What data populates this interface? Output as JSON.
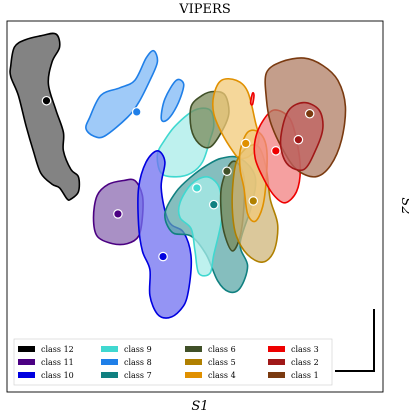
{
  "chart_data": {
    "type": "scatter",
    "title": "VIPERS",
    "xlabel": "S1",
    "ylabel": "S2",
    "xlim": [
      0,
      100
    ],
    "ylim": [
      0,
      100
    ],
    "grid": false,
    "legend_placement": "bottom-left",
    "scale_bar": true,
    "series": [
      {
        "name": "class 12",
        "color": "#000000",
        "fill": "#5a5a5a",
        "centroid": [
          10.5,
          78.5
        ],
        "outline": [
          [
            1,
            88
          ],
          [
            2,
            93
          ],
          [
            5,
            95
          ],
          [
            9,
            96
          ],
          [
            13,
            96.5
          ],
          [
            14,
            93
          ],
          [
            12,
            89
          ],
          [
            11,
            83
          ],
          [
            13,
            76
          ],
          [
            15,
            70
          ],
          [
            15,
            65
          ],
          [
            17,
            60
          ],
          [
            19,
            58
          ],
          [
            19,
            54
          ],
          [
            17,
            52
          ],
          [
            16,
            52
          ],
          [
            14,
            55
          ],
          [
            12,
            56
          ],
          [
            9,
            59
          ],
          [
            7,
            65
          ],
          [
            5,
            72
          ],
          [
            3,
            80
          ],
          [
            1,
            85
          ]
        ]
      },
      {
        "name": "class 8",
        "color": "#1f7fe8",
        "fill": "#7fb8f5",
        "centroid": [
          34.5,
          75.5
        ],
        "outline": [
          [
            22,
            74
          ],
          [
            25,
            80
          ],
          [
            30,
            82
          ],
          [
            34,
            84
          ],
          [
            37,
            90
          ],
          [
            39,
            92
          ],
          [
            40,
            89
          ],
          [
            38,
            84
          ],
          [
            35,
            78
          ],
          [
            32,
            74
          ],
          [
            26,
            69
          ],
          [
            23,
            69
          ],
          [
            21,
            71
          ]
        ]
      },
      {
        "name": "class 8",
        "color": "#1f7fe8",
        "fill": "#7fb8f5",
        "centroid": null,
        "outline": [
          [
            41,
            74
          ],
          [
            42,
            79
          ],
          [
            45,
            84
          ],
          [
            47,
            83
          ],
          [
            46,
            79
          ],
          [
            44,
            75
          ],
          [
            42,
            73
          ]
        ]
      },
      {
        "name": "class 9",
        "color": "#40d8d0",
        "fill": "#a8ece8",
        "centroid": null,
        "outline": [
          [
            40,
            64
          ],
          [
            42,
            68
          ],
          [
            45,
            72
          ],
          [
            50,
            76
          ],
          [
            54,
            76
          ],
          [
            55,
            72
          ],
          [
            54,
            68
          ],
          [
            52,
            62
          ],
          [
            49,
            59
          ],
          [
            45,
            58
          ],
          [
            41,
            59
          ]
        ]
      },
      {
        "name": "class 11",
        "color": "#4b0082",
        "fill": "#8c6bb2",
        "centroid": [
          29.5,
          48
        ],
        "outline": [
          [
            23,
            47
          ],
          [
            24,
            53
          ],
          [
            27,
            56
          ],
          [
            31,
            57
          ],
          [
            34,
            57
          ],
          [
            36,
            53
          ],
          [
            36,
            47
          ],
          [
            35,
            42
          ],
          [
            32,
            40
          ],
          [
            28,
            40
          ],
          [
            24,
            42
          ]
        ]
      },
      {
        "name": "class 10",
        "color": "#0000e0",
        "fill": "#7070f0",
        "centroid": [
          41.5,
          36.5
        ],
        "outline": [
          [
            35,
            55
          ],
          [
            37,
            62
          ],
          [
            40,
            65
          ],
          [
            42,
            62
          ],
          [
            41,
            55
          ],
          [
            43,
            46
          ],
          [
            47,
            43
          ],
          [
            49,
            36
          ],
          [
            48,
            26
          ],
          [
            46,
            22
          ],
          [
            43,
            20
          ],
          [
            40,
            21
          ],
          [
            38,
            26
          ],
          [
            38,
            33
          ],
          [
            36,
            38
          ],
          [
            35,
            45
          ]
        ]
      },
      {
        "name": "class 7",
        "color": "#108080",
        "fill": "#5ca8a8",
        "centroid": [
          55,
          50.5
        ],
        "outline": [
          [
            42,
            48
          ],
          [
            45,
            54
          ],
          [
            49,
            58
          ],
          [
            53,
            61
          ],
          [
            57,
            63
          ],
          [
            62,
            63
          ],
          [
            66,
            58
          ],
          [
            65,
            50
          ],
          [
            62,
            40
          ],
          [
            64,
            34
          ],
          [
            62,
            28
          ],
          [
            59,
            27
          ],
          [
            56,
            30
          ],
          [
            53,
            37
          ],
          [
            49,
            42
          ],
          [
            44,
            43
          ]
        ]
      },
      {
        "name": "class 9",
        "color": "#40d8d0",
        "fill": "#a8ece8",
        "centroid": [
          50.5,
          55
        ],
        "outline": [
          [
            46,
            51
          ],
          [
            49,
            56
          ],
          [
            53,
            58
          ],
          [
            56,
            56
          ],
          [
            57,
            52
          ],
          [
            57,
            46
          ],
          [
            55,
            37
          ],
          [
            54,
            32
          ],
          [
            51,
            32
          ],
          [
            50,
            38
          ],
          [
            49,
            44
          ],
          [
            46,
            47
          ]
        ]
      },
      {
        "name": "class 6",
        "color": "#405028",
        "fill": "#7a8a5a",
        "centroid": [
          58.5,
          59.5
        ],
        "outline": [
          [
            49,
            77
          ],
          [
            52,
            80
          ],
          [
            55,
            81
          ],
          [
            58,
            80
          ],
          [
            59,
            75
          ],
          [
            57,
            70
          ],
          [
            54,
            66
          ],
          [
            51,
            67
          ],
          [
            49,
            71
          ]
        ]
      },
      {
        "name": "class 6",
        "color": "#405028",
        "fill": "#7a8a5a",
        "centroid": null,
        "outline": [
          [
            57,
            55
          ],
          [
            59,
            61
          ],
          [
            61,
            62
          ],
          [
            63,
            58
          ],
          [
            63,
            50
          ],
          [
            62,
            42
          ],
          [
            60,
            38
          ],
          [
            58,
            42
          ],
          [
            57,
            48
          ]
        ]
      },
      {
        "name": "class 4",
        "color": "#e09000",
        "fill": "#f2c978",
        "centroid": [
          63.5,
          67
        ],
        "outline": [
          [
            55,
            80
          ],
          [
            57,
            84
          ],
          [
            61,
            84
          ],
          [
            64,
            81
          ],
          [
            66,
            73
          ],
          [
            67,
            68
          ],
          [
            65,
            64
          ],
          [
            62,
            63
          ],
          [
            60,
            65
          ],
          [
            57,
            70
          ],
          [
            55,
            75
          ]
        ]
      },
      {
        "name": "class 5",
        "color": "#b08000",
        "fill": "#cfb67a",
        "centroid": [
          65.5,
          51.5
        ],
        "outline": [
          [
            60,
            55
          ],
          [
            61,
            62
          ],
          [
            64,
            66
          ],
          [
            67,
            66
          ],
          [
            69,
            60
          ],
          [
            70,
            52
          ],
          [
            72,
            45
          ],
          [
            71,
            38
          ],
          [
            68,
            35
          ],
          [
            64,
            37
          ],
          [
            61,
            42
          ],
          [
            60,
            48
          ]
        ]
      },
      {
        "name": "class 4",
        "color": "#e09000",
        "fill": "#f2c978",
        "centroid": null,
        "outline": [
          [
            62,
            65
          ],
          [
            64,
            70
          ],
          [
            67,
            70
          ],
          [
            69,
            66
          ],
          [
            69,
            58
          ],
          [
            68,
            50
          ],
          [
            66,
            46
          ],
          [
            64,
            48
          ],
          [
            63,
            55
          ],
          [
            62,
            60
          ]
        ]
      },
      {
        "name": "class 3",
        "color": "#ee0000",
        "fill": "#f28080",
        "centroid": [
          71.5,
          65
        ],
        "outline": [
          [
            66,
            68
          ],
          [
            68,
            73
          ],
          [
            71,
            76
          ],
          [
            75,
            74
          ],
          [
            77,
            68
          ],
          [
            78,
            60
          ],
          [
            77,
            54
          ],
          [
            74,
            51
          ],
          [
            71,
            53
          ],
          [
            68,
            58
          ],
          [
            66,
            63
          ]
        ]
      },
      {
        "name": "class 3",
        "color": "#ee0000",
        "fill": "#f28080",
        "centroid": null,
        "outline": [
          [
            64.8,
            78
          ],
          [
            65.3,
            80.5
          ],
          [
            65.7,
            80
          ],
          [
            65.3,
            77.5
          ]
        ]
      },
      {
        "name": "class 1",
        "color": "#7a3a10",
        "fill": "#b07e64",
        "centroid": [
          80.5,
          75
        ],
        "outline": [
          [
            69,
            86
          ],
          [
            73,
            89
          ],
          [
            79,
            90
          ],
          [
            84,
            88
          ],
          [
            88,
            84
          ],
          [
            90,
            77
          ],
          [
            89,
            68
          ],
          [
            86,
            61
          ],
          [
            82,
            58
          ],
          [
            77,
            60
          ],
          [
            73,
            66
          ],
          [
            70,
            73
          ],
          [
            69,
            79
          ]
        ]
      },
      {
        "name": "class 2",
        "color": "#a01818",
        "fill": "#c06060",
        "centroid": [
          77.5,
          68
        ],
        "outline": [
          [
            73,
            70
          ],
          [
            75,
            76
          ],
          [
            79,
            78
          ],
          [
            83,
            76
          ],
          [
            84,
            71
          ],
          [
            82,
            65
          ],
          [
            79,
            60
          ],
          [
            75,
            61
          ],
          [
            73,
            65
          ]
        ]
      }
    ],
    "legend": [
      {
        "label": "class 12",
        "color": "#000000"
      },
      {
        "label": "class 11",
        "color": "#4b0082"
      },
      {
        "label": "class 10",
        "color": "#0000e0"
      },
      {
        "label": "class 9",
        "color": "#40d8d0"
      },
      {
        "label": "class 8",
        "color": "#1f7fe8"
      },
      {
        "label": "class 7",
        "color": "#108080"
      },
      {
        "label": "class 6",
        "color": "#405028"
      },
      {
        "label": "class 5",
        "color": "#b08000"
      },
      {
        "label": "class 4",
        "color": "#e09000"
      },
      {
        "label": "class 3",
        "color": "#ee0000"
      },
      {
        "label": "class 2",
        "color": "#a01818"
      },
      {
        "label": "class 1",
        "color": "#7a3a10"
      }
    ]
  }
}
